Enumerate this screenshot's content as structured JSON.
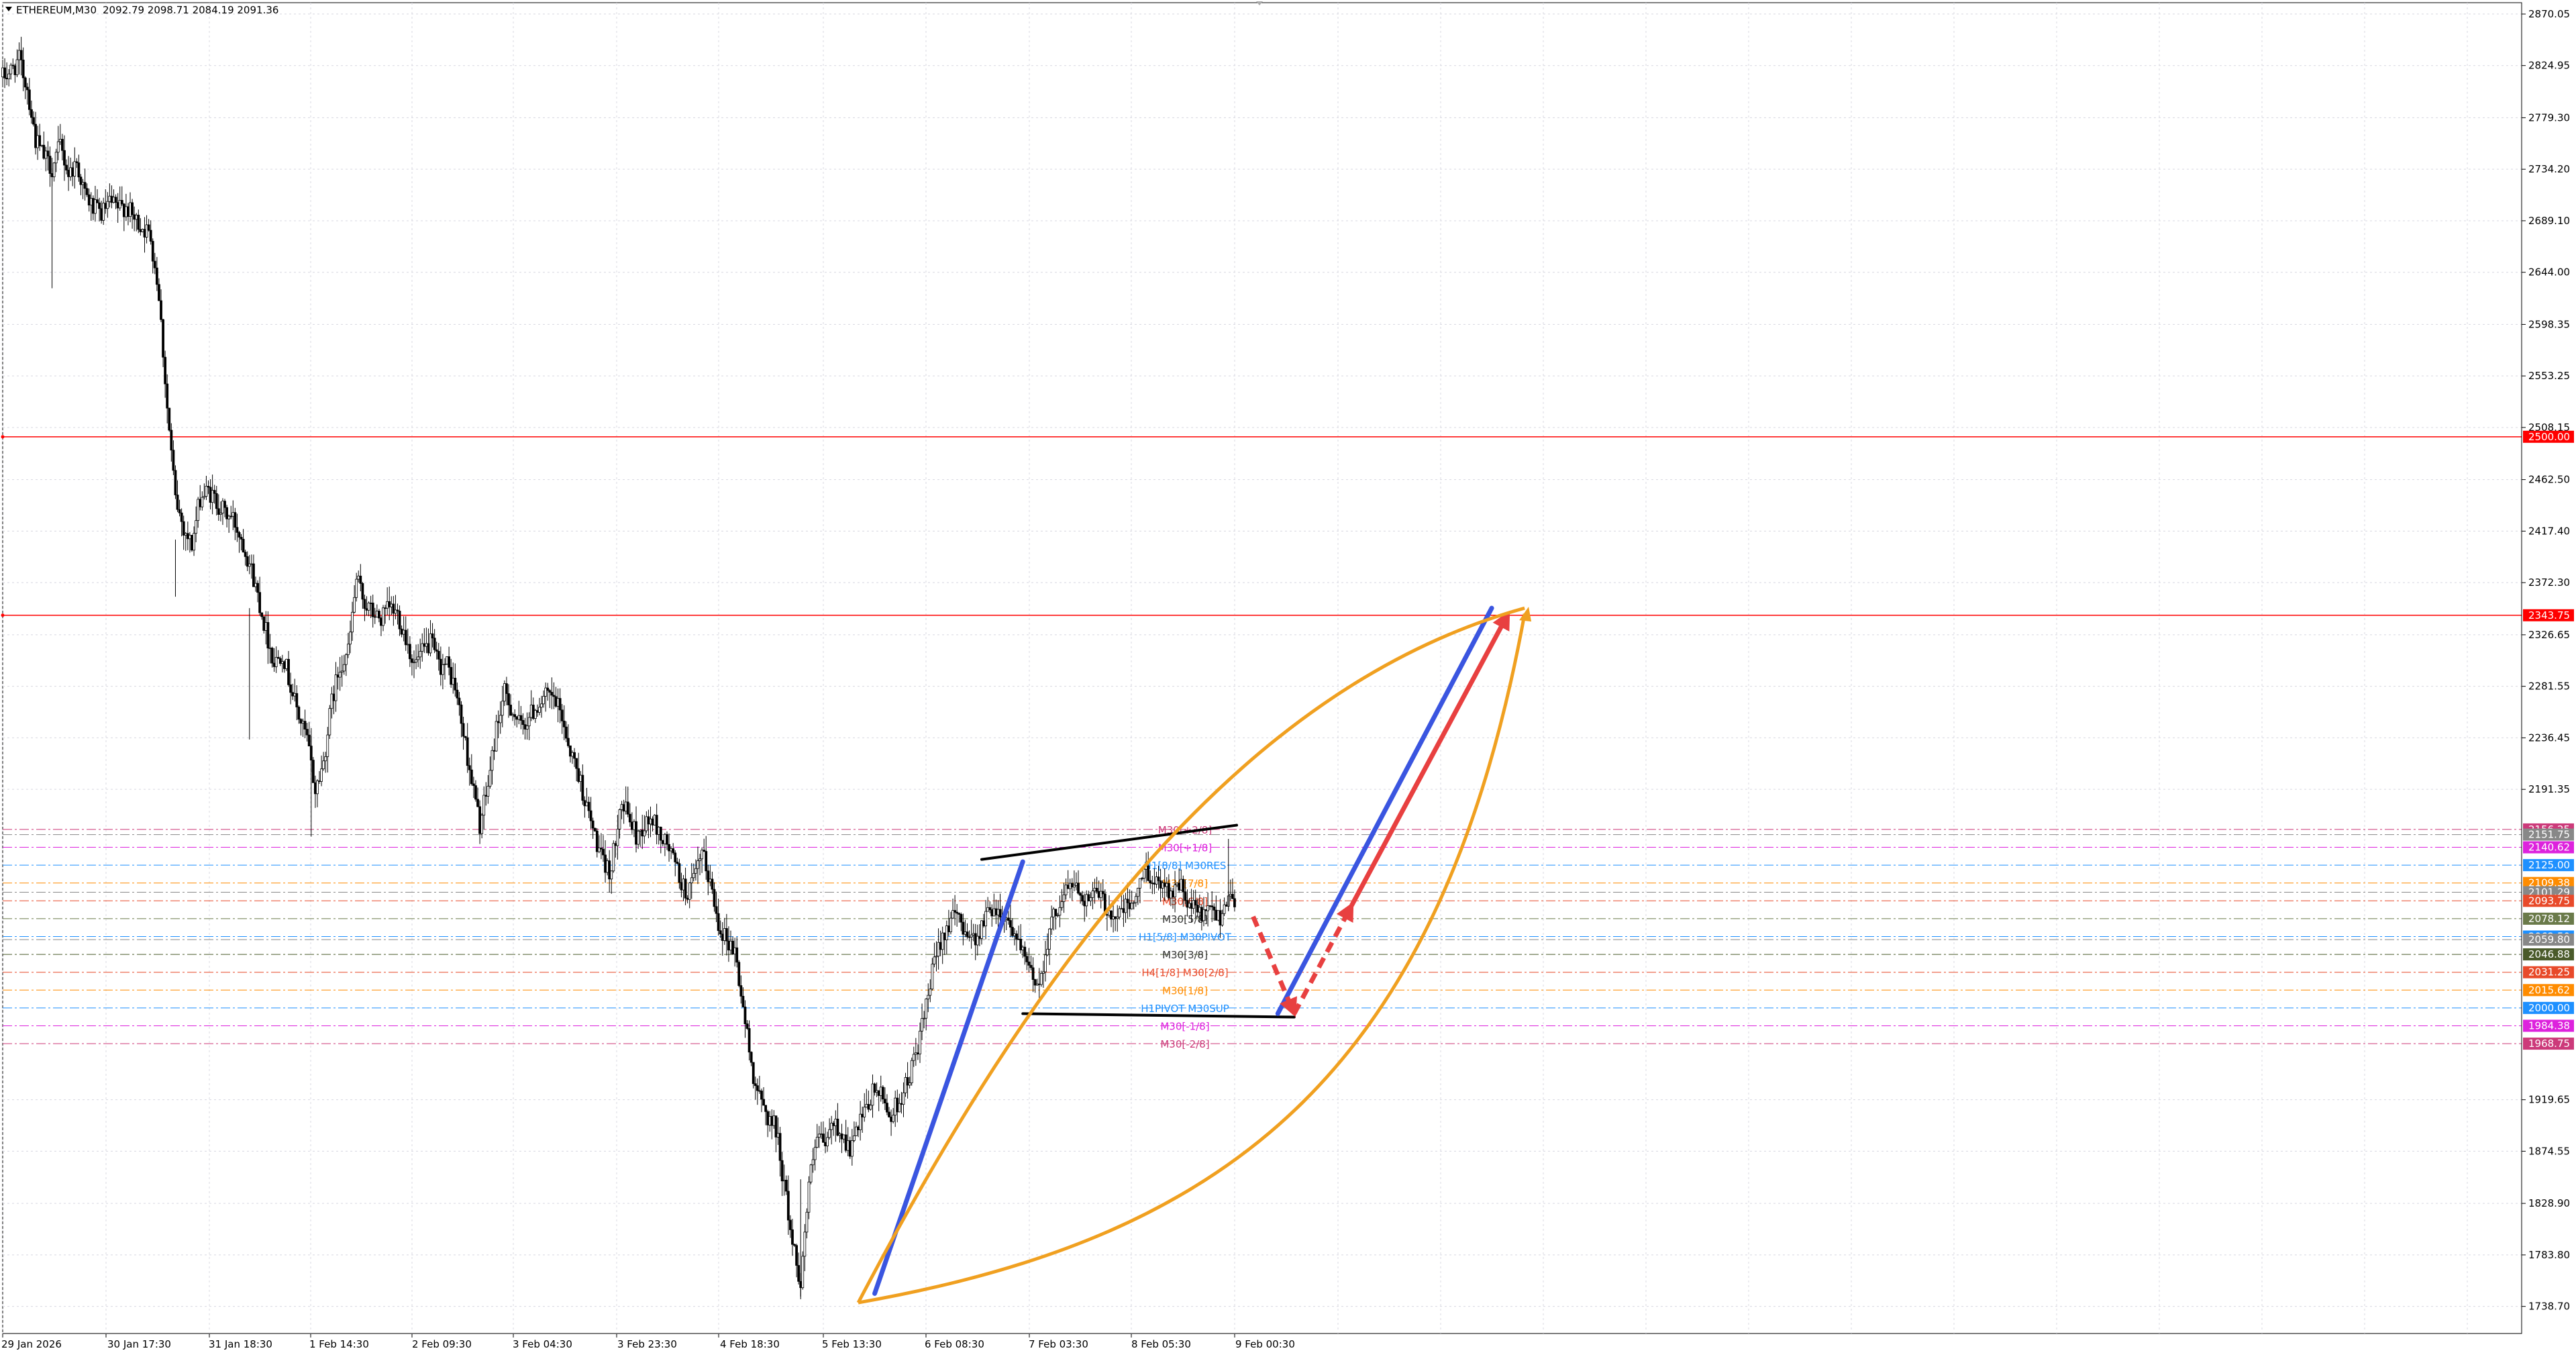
{
  "header": {
    "symbol": "ETHEREUM,M30",
    "ohlc": "2092.79 2098.71 2084.19 2091.36"
  },
  "chart_data": {
    "type": "candlestick",
    "symbol": "ETHEREUM",
    "timeframe": "M30",
    "last_ohlc": {
      "open": 2092.79,
      "high": 2098.71,
      "low": 2084.19,
      "close": 2091.36
    },
    "ylim": [
      1715,
      2880
    ],
    "y_ticks": [
      "2870.05",
      "2824.95",
      "2779.30",
      "2734.20",
      "2689.10",
      "2644.00",
      "2598.35",
      "2553.25",
      "2508.15",
      "2462.50",
      "2417.40",
      "2372.30",
      "2326.65",
      "2281.55",
      "2236.45",
      "2191.35",
      "1919.65",
      "1874.55",
      "1828.90",
      "1783.80",
      "1738.70"
    ],
    "x_ticks": [
      "29 Jan 2026",
      "30 Jan 17:30",
      "31 Jan 18:30",
      "1 Feb 14:30",
      "2 Feb 09:30",
      "3 Feb 04:30",
      "3 Feb 23:30",
      "4 Feb 18:30",
      "5 Feb 13:30",
      "6 Feb 08:30",
      "7 Feb 03:30",
      "8 Feb 05:30",
      "9 Feb 00:30"
    ],
    "x_span": [
      "29 Jan 2026",
      "9 Feb 00:30"
    ],
    "price_path": [
      [
        0,
        2815
      ],
      [
        1,
        2820
      ],
      [
        2,
        2830
      ],
      [
        3,
        2805
      ],
      [
        4,
        2760
      ],
      [
        5,
        2745
      ],
      [
        6,
        2735
      ],
      [
        7,
        2755
      ],
      [
        8,
        2730
      ],
      [
        9,
        2740
      ],
      [
        10,
        2712
      ],
      [
        11,
        2700
      ],
      [
        12,
        2695
      ],
      [
        13,
        2704
      ],
      [
        14,
        2700
      ],
      [
        15,
        2702
      ],
      [
        16,
        2690
      ],
      [
        17,
        2684
      ],
      [
        18,
        2675
      ],
      [
        19,
        2625
      ],
      [
        20,
        2525
      ],
      [
        21,
        2445
      ],
      [
        22,
        2420
      ],
      [
        23,
        2405
      ],
      [
        24,
        2447
      ],
      [
        25,
        2452
      ],
      [
        26,
        2443
      ],
      [
        27,
        2433
      ],
      [
        28,
        2428
      ],
      [
        29,
        2412
      ],
      [
        30,
        2390
      ],
      [
        31,
        2362
      ],
      [
        32,
        2330
      ],
      [
        33,
        2302
      ],
      [
        34,
        2312
      ],
      [
        35,
        2282
      ],
      [
        36,
        2255
      ],
      [
        37,
        2235
      ],
      [
        38,
        2190
      ],
      [
        39,
        2215
      ],
      [
        40,
        2268
      ],
      [
        41,
        2300
      ],
      [
        42,
        2312
      ],
      [
        43,
        2375
      ],
      [
        44,
        2355
      ],
      [
        45,
        2345
      ],
      [
        46,
        2340
      ],
      [
        47,
        2350
      ],
      [
        48,
        2345
      ],
      [
        49,
        2325
      ],
      [
        50,
        2300
      ],
      [
        51,
        2310
      ],
      [
        52,
        2320
      ],
      [
        53,
        2300
      ],
      [
        54,
        2300
      ],
      [
        55,
        2280
      ],
      [
        56,
        2240
      ],
      [
        57,
        2200
      ],
      [
        58,
        2160
      ],
      [
        59,
        2195
      ],
      [
        60,
        2245
      ],
      [
        61,
        2275
      ],
      [
        62,
        2260
      ],
      [
        63,
        2245
      ],
      [
        64,
        2255
      ],
      [
        65,
        2265
      ],
      [
        66,
        2272
      ],
      [
        67,
        2270
      ],
      [
        68,
        2255
      ],
      [
        69,
        2225
      ],
      [
        70,
        2205
      ],
      [
        71,
        2175
      ],
      [
        72,
        2150
      ],
      [
        73,
        2125
      ],
      [
        74,
        2120
      ],
      [
        75,
        2180
      ],
      [
        76,
        2170
      ],
      [
        77,
        2150
      ],
      [
        78,
        2160
      ],
      [
        79,
        2165
      ],
      [
        80,
        2150
      ],
      [
        81,
        2140
      ],
      [
        82,
        2120
      ],
      [
        83,
        2100
      ],
      [
        84,
        2110
      ],
      [
        85,
        2135
      ],
      [
        86,
        2110
      ],
      [
        87,
        2075
      ],
      [
        88,
        2060
      ],
      [
        89,
        2050
      ],
      [
        90,
        2000
      ],
      [
        91,
        1950
      ],
      [
        92,
        1920
      ],
      [
        93,
        1905
      ],
      [
        94,
        1895
      ],
      [
        95,
        1845
      ],
      [
        96,
        1795
      ],
      [
        97,
        1760
      ],
      [
        98,
        1845
      ],
      [
        99,
        1885
      ],
      [
        100,
        1880
      ],
      [
        101,
        1900
      ],
      [
        102,
        1890
      ],
      [
        103,
        1875
      ],
      [
        104,
        1895
      ],
      [
        105,
        1910
      ],
      [
        106,
        1930
      ],
      [
        107,
        1920
      ],
      [
        108,
        1905
      ],
      [
        109,
        1920
      ],
      [
        110,
        1935
      ],
      [
        111,
        1960
      ],
      [
        112,
        1990
      ],
      [
        113,
        2030
      ],
      [
        114,
        2060
      ],
      [
        115,
        2075
      ],
      [
        116,
        2080
      ],
      [
        117,
        2070
      ],
      [
        118,
        2060
      ],
      [
        119,
        2070
      ],
      [
        120,
        2090
      ],
      [
        121,
        2085
      ],
      [
        122,
        2080
      ],
      [
        123,
        2065
      ],
      [
        124,
        2045
      ],
      [
        125,
        2030
      ],
      [
        126,
        2020
      ],
      [
        127,
        2060
      ],
      [
        128,
        2085
      ],
      [
        129,
        2100
      ],
      [
        130,
        2110
      ],
      [
        131,
        2100
      ],
      [
        132,
        2095
      ],
      [
        133,
        2100
      ],
      [
        134,
        2090
      ],
      [
        135,
        2080
      ],
      [
        136,
        2085
      ],
      [
        137,
        2090
      ],
      [
        138,
        2100
      ],
      [
        139,
        2125
      ],
      [
        140,
        2105
      ],
      [
        141,
        2115
      ],
      [
        142,
        2100
      ],
      [
        143,
        2110
      ],
      [
        144,
        2090
      ],
      [
        145,
        2085
      ],
      [
        146,
        2080
      ],
      [
        147,
        2085
      ],
      [
        148,
        2080
      ],
      [
        149,
        2100
      ],
      [
        150,
        2090
      ]
    ],
    "price_levels": [
      {
        "price": 2500.0,
        "label": "2500.00",
        "color": "#ff0000",
        "style": "solid",
        "text_color": "#ffffff"
      },
      {
        "price": 2343.75,
        "label": "2343.75",
        "color": "#ff0000",
        "style": "solid",
        "text_color": "#ffffff"
      },
      {
        "price": 2156.25,
        "label": "2156.25",
        "color": "#cc3a7a",
        "style": "dashdot",
        "text_color": "#ffffff",
        "text": "M30[+2/8]",
        "text_fill": "#cc3a7a"
      },
      {
        "price": 2151.75,
        "label": "2151.75",
        "color": "#888888",
        "style": "dashdot",
        "text_color": "#ffffff"
      },
      {
        "price": 2140.62,
        "label": "2140.62",
        "color": "#dd22dd",
        "style": "dashdot",
        "text_color": "#ffffff",
        "text": "M30[+1/8]",
        "text_fill": "#dd22dd"
      },
      {
        "price": 2125.0,
        "label": "2125.00",
        "color": "#1e90ff",
        "style": "dashdot",
        "text_color": "#ffffff",
        "text": "H1[8/8] M30RES",
        "text_fill": "#1e90ff"
      },
      {
        "price": 2109.38,
        "label": "2109.38",
        "color": "#ff8c00",
        "style": "dashdot",
        "text_color": "#ffffff",
        "text": "M30[7/8]",
        "text_fill": "#ff8c00"
      },
      {
        "price": 2101.29,
        "label": "2101.29",
        "color": "#888888",
        "style": "dashdot",
        "text_color": "#ffffff"
      },
      {
        "price": 2093.75,
        "label": "2093.75",
        "color": "#e84a2a",
        "style": "dashdot",
        "text_color": "#ffffff",
        "text": "M30[6/8]",
        "text_fill": "#e84a2a"
      },
      {
        "price": 2078.12,
        "label": "2078.12",
        "color": "#6a7a4a",
        "style": "dashdot",
        "text_color": "#ffffff",
        "text": "M30[5/8]",
        "text_fill": "#333333"
      },
      {
        "price": 2062.5,
        "label": "2062.50",
        "color": "#1e90ff",
        "style": "dashdot",
        "text_color": "#ffffff",
        "text": "H1[5/8] M30PIVOT",
        "text_fill": "#1e90ff"
      },
      {
        "price": 2059.8,
        "label": "2059.80",
        "color": "#888888",
        "style": "dashdot",
        "text_color": "#ffffff"
      },
      {
        "price": 2046.88,
        "label": "2046.88",
        "color": "#4a5a2a",
        "style": "dashdot",
        "text_color": "#ffffff",
        "text": "M30[3/8]",
        "text_fill": "#333333"
      },
      {
        "price": 2031.25,
        "label": "2031.25",
        "color": "#e84a2a",
        "style": "dashdot",
        "text_color": "#ffffff",
        "text": "H4[1/8] M30[2/8]",
        "text_fill": "#e84a2a"
      },
      {
        "price": 2015.62,
        "label": "2015.62",
        "color": "#ff8c00",
        "style": "dashdot",
        "text_color": "#ffffff",
        "text": "M30[1/8]",
        "text_fill": "#ff8c00"
      },
      {
        "price": 2000.0,
        "label": "2000.00",
        "color": "#1e90ff",
        "style": "dashdot",
        "text_color": "#ffffff",
        "text": "H1PIVOT M30SUP",
        "text_fill": "#1e90ff"
      },
      {
        "price": 1984.38,
        "label": "1984.38",
        "color": "#dd22dd",
        "style": "dashdot",
        "text_color": "#ffffff",
        "text": "M30[-1/8]",
        "text_fill": "#dd22dd"
      },
      {
        "price": 1968.75,
        "label": "1968.75",
        "color": "#cc3a7a",
        "style": "dashdot",
        "text_color": "#ffffff",
        "text": "M30[-2/8]",
        "text_fill": "#cc3a7a"
      }
    ],
    "drawings": [
      {
        "kind": "trendline",
        "color": "#000000",
        "points": [
          [
            119,
            2130
          ],
          [
            150,
            2160
          ]
        ]
      },
      {
        "kind": "trendline",
        "color": "#000000",
        "points": [
          [
            124,
            1995
          ],
          [
            157,
            1992
          ]
        ]
      },
      {
        "kind": "trendline",
        "color": "#3a55e0",
        "points": [
          [
            106,
            1750
          ],
          [
            124,
            2128
          ]
        ]
      },
      {
        "kind": "trendline",
        "color": "#3a55e0",
        "points": [
          [
            155,
            1995
          ],
          [
            181,
            2350
          ]
        ]
      },
      {
        "kind": "arrow",
        "color": "#e84040",
        "dashed": true,
        "points": [
          [
            152,
            2080
          ],
          [
            157,
            1995
          ]
        ]
      },
      {
        "kind": "arrow",
        "color": "#e84040",
        "dashed": true,
        "points": [
          [
            157,
            1995
          ],
          [
            164,
            2090
          ]
        ]
      },
      {
        "kind": "arrow",
        "color": "#e84040",
        "dashed": false,
        "points": [
          [
            164,
            2090
          ],
          [
            183,
            2345
          ]
        ]
      },
      {
        "kind": "curve",
        "color": "#f0a020",
        "points": [
          [
            104,
            1742
          ],
          [
            125,
            2030
          ],
          [
            150,
            2280
          ],
          [
            185,
            2350
          ]
        ]
      },
      {
        "kind": "curve",
        "color": "#f0a020",
        "points": [
          [
            104,
            1742
          ],
          [
            150,
            1800
          ],
          [
            175,
            1950
          ],
          [
            185,
            2345
          ]
        ]
      },
      {
        "kind": "arrowhead",
        "color": "#f0a020",
        "points": [
          [
            185,
            2350
          ],
          [
            186,
            2345
          ]
        ]
      }
    ]
  }
}
